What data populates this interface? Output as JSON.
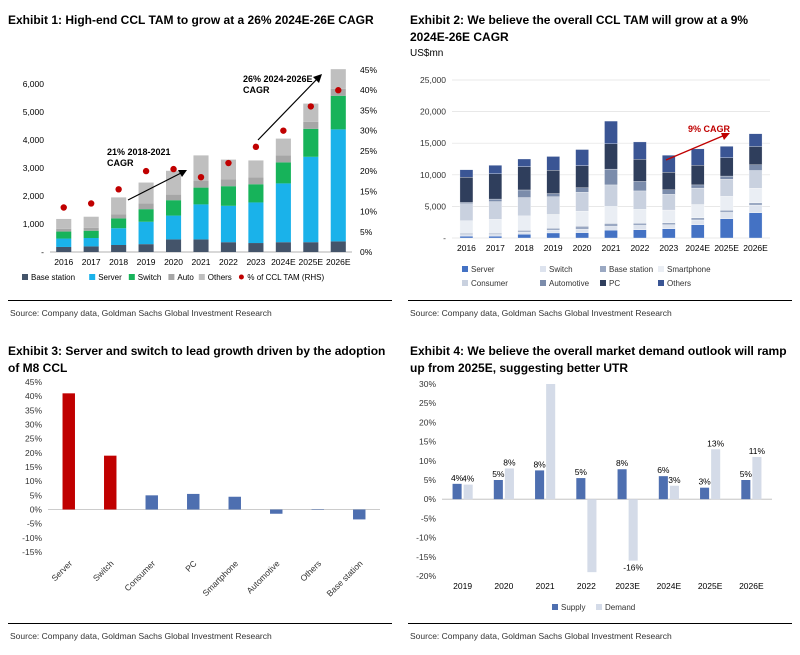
{
  "exhibit1": {
    "title": "Exhibit 1: High-end CCL TAM to grow at a 26% 2024E-26E CAGR",
    "source": "Source: Company data, Goldman Sachs Global Investment Research",
    "annotations": {
      "cagr1_line1": "21% 2018-2021",
      "cagr1_line2": "CAGR",
      "cagr2_line1": "26% 2024-2026E",
      "cagr2_line2": "CAGR"
    }
  },
  "exhibit2": {
    "title_line1": "Exhibit 2: We believe the overall CCL TAM will grow at a 9%",
    "title_line2": "2024E-26E CAGR",
    "unit": "US$mn",
    "source": "Source: Company data, Goldman Sachs Global Investment Research",
    "annotation": "9% CAGR"
  },
  "exhibit3": {
    "title_line1": "Exhibit 3: Server and switch to lead growth driven by the adoption",
    "title_line2": "of M8 CCL",
    "source": "Source: Company data, Goldman Sachs Global Investment Research"
  },
  "exhibit4": {
    "title_line1": "Exhibit 4: We believe the overall market demand outlook will ramp",
    "title_line2": "up from 2025E, suggesting better UTR",
    "source": "Source: Company data, Goldman Sachs Global Investment Research"
  },
  "chart_data": [
    {
      "id": "ex1",
      "type": "bar",
      "stacked": true,
      "categories": [
        "2016",
        "2017",
        "2018",
        "2019",
        "2020",
        "2021",
        "2022",
        "2023",
        "2024E",
        "2025E",
        "2026E"
      ],
      "series": [
        {
          "name": "Base station",
          "color": "#44546a",
          "values": [
            180,
            200,
            250,
            280,
            450,
            450,
            350,
            320,
            350,
            350,
            380
          ]
        },
        {
          "name": "Server",
          "color": "#1ab2ea",
          "values": [
            300,
            300,
            600,
            800,
            850,
            1250,
            1300,
            1450,
            2100,
            3050,
            4000
          ]
        },
        {
          "name": "Switch",
          "color": "#17b35a",
          "values": [
            250,
            260,
            350,
            450,
            550,
            600,
            700,
            650,
            750,
            1000,
            1200
          ]
        },
        {
          "name": "Auto",
          "color": "#a6a6a6",
          "values": [
            100,
            100,
            150,
            200,
            200,
            250,
            250,
            250,
            250,
            250,
            250
          ]
        },
        {
          "name": "Others",
          "color": "#bfbfbf",
          "values": [
            350,
            400,
            600,
            750,
            850,
            900,
            700,
            600,
            600,
            650,
            700
          ]
        }
      ],
      "line_series": {
        "name": "% of CCL TAM (RHS)",
        "color": "#c00000",
        "values": [
          11,
          12,
          15.5,
          20,
          20.5,
          18.5,
          22,
          26,
          30,
          36,
          40
        ]
      },
      "ylim": [
        0,
        6500
      ],
      "yticks_left": [
        "-",
        "1,000",
        "2,000",
        "3,000",
        "4,000",
        "5,000",
        "6,000"
      ],
      "ylim_right": [
        0,
        45
      ],
      "yticks_right": [
        "0%",
        "5%",
        "10%",
        "15%",
        "20%",
        "25%",
        "30%",
        "35%",
        "40%",
        "45%"
      ],
      "legend": [
        "Base station",
        "Server",
        "Switch",
        "Auto",
        "Others",
        "% of CCL TAM (RHS)"
      ]
    },
    {
      "id": "ex2",
      "type": "bar",
      "stacked": true,
      "categories": [
        "2016",
        "2017",
        "2018",
        "2019",
        "2020",
        "2021",
        "2022",
        "2023",
        "2024E",
        "2025E",
        "2026E"
      ],
      "series": [
        {
          "name": "Server",
          "color": "#4472c4",
          "values": [
            300,
            300,
            600,
            800,
            850,
            1250,
            1300,
            1450,
            2100,
            3050,
            4000
          ]
        },
        {
          "name": "Switch",
          "color": "#dde3ee",
          "values": [
            250,
            260,
            350,
            450,
            550,
            600,
            700,
            650,
            750,
            1000,
            1200
          ]
        },
        {
          "name": "Base station",
          "color": "#9aa8c2",
          "values": [
            180,
            200,
            250,
            280,
            450,
            450,
            350,
            320,
            350,
            350,
            380
          ]
        },
        {
          "name": "Smartphone",
          "color": "#eaeef4",
          "values": [
            2000,
            2200,
            2300,
            2200,
            2400,
            2700,
            2200,
            2000,
            2100,
            2200,
            2300
          ]
        },
        {
          "name": "Consumer",
          "color": "#c9d1df",
          "values": [
            2700,
            2800,
            2900,
            2800,
            3000,
            3400,
            2900,
            2500,
            2600,
            2700,
            2800
          ]
        },
        {
          "name": "Automotive",
          "color": "#7b8cab",
          "values": [
            200,
            400,
            1200,
            500,
            700,
            2500,
            1500,
            700,
            500,
            500,
            900
          ]
        },
        {
          "name": "PC",
          "color": "#2f3e5c",
          "values": [
            4000,
            4000,
            3700,
            3700,
            3500,
            4000,
            3500,
            2800,
            3100,
            2900,
            2900
          ]
        },
        {
          "name": "Others",
          "color": "#3a5594",
          "values": [
            1170,
            1340,
            1200,
            2170,
            2550,
            3600,
            2750,
            2680,
            2600,
            1800,
            2020
          ]
        }
      ],
      "ylim": [
        0,
        25000
      ],
      "yticks": [
        "-",
        "5,000",
        "10,000",
        "15,000",
        "20,000",
        "25,000"
      ],
      "legend": [
        "Server",
        "Switch",
        "Base station",
        "Smartphone",
        "Consumer",
        "Automotive",
        "PC",
        "Others"
      ]
    },
    {
      "id": "ex3",
      "type": "bar",
      "categories": [
        "Server",
        "Switch",
        "Consumer",
        "PC",
        "Smartphone",
        "Automotive",
        "Others",
        "Base station"
      ],
      "values": [
        41,
        19,
        5,
        5.5,
        4.5,
        -1.5,
        0,
        -3.5
      ],
      "colors": [
        "#c00000",
        "#c00000",
        "#4e6fb0",
        "#4e6fb0",
        "#4e6fb0",
        "#4e6fb0",
        "#4e6fb0",
        "#4e6fb0"
      ],
      "ylim": [
        -15,
        45
      ],
      "yticks": [
        "-15%",
        "-10%",
        "-5%",
        "0%",
        "5%",
        "10%",
        "15%",
        "20%",
        "25%",
        "30%",
        "35%",
        "40%",
        "45%"
      ]
    },
    {
      "id": "ex4",
      "type": "bar",
      "categories": [
        "2019",
        "2020",
        "2021",
        "2022",
        "2023E",
        "2024E",
        "2025E",
        "2026E"
      ],
      "series": [
        {
          "name": "Supply",
          "color": "#4e6fb0",
          "values": [
            4,
            5,
            7.5,
            5.5,
            7.8,
            6,
            3,
            5
          ],
          "labels": [
            "4%",
            "5%",
            "8%",
            "5%",
            "8%",
            "6%",
            "3%",
            "5%"
          ]
        },
        {
          "name": "Demand",
          "color": "#d4dbe8",
          "values": [
            3.8,
            8,
            30,
            -19,
            -16,
            3.5,
            13,
            11
          ],
          "labels": [
            "4%",
            "8%",
            "",
            "",
            "-16%",
            "3%",
            "13%",
            "11%"
          ]
        }
      ],
      "ylim": [
        -20,
        30
      ],
      "yticks": [
        "-20%",
        "-15%",
        "-10%",
        "-5%",
        "0%",
        "5%",
        "10%",
        "15%",
        "20%",
        "25%",
        "30%"
      ],
      "legend": [
        "Supply",
        "Demand"
      ]
    }
  ]
}
